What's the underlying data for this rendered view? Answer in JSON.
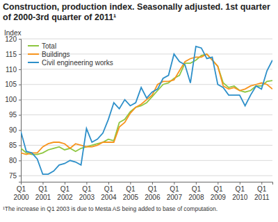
{
  "chart_data": {
    "type": "line",
    "title": "Construction, production index. Seasonally adjusted. 1st quarter of 2000-3rd quarter of 2011¹",
    "y_label": "Index",
    "annotations": [
      "¹The increase in Q1 2003 is due to Mesta AS being added to base of computation."
    ],
    "categories": [
      "Q1 2000",
      null,
      null,
      null,
      "Q1 2001",
      null,
      null,
      null,
      "Q1 2002",
      null,
      null,
      null,
      "Q1 2003",
      null,
      null,
      null,
      "Q1 2004",
      null,
      null,
      null,
      "Q1 2005",
      null,
      null,
      null,
      "Q1 2006",
      null,
      null,
      null,
      "Q1 2007",
      null,
      null,
      null,
      "Q1 2008",
      null,
      null,
      null,
      "Q1 2009",
      null,
      null,
      null,
      "Q1 2010",
      null,
      null,
      null,
      "Q1 2011",
      null,
      null
    ],
    "series": [
      {
        "name": "Total",
        "color": "#8dc63f",
        "values": [
          84,
          82.5,
          82,
          82,
          82.5,
          83.5,
          84,
          84.5,
          83.5,
          84,
          83,
          84,
          84.5,
          85,
          85.5,
          86,
          87,
          86.5,
          92.5,
          93.5,
          96,
          97.5,
          98,
          99,
          101,
          103,
          105,
          105.5,
          107,
          108,
          112,
          112,
          113,
          114.5,
          115,
          113,
          111,
          105.5,
          104,
          104.5,
          103,
          102.5,
          103,
          104.5,
          104.5,
          106,
          106.3
        ]
      },
      {
        "name": "Buildings",
        "color": "#f7941d",
        "values": [
          82.5,
          82,
          82.5,
          82.5,
          84.5,
          85.5,
          86,
          86,
          85.5,
          84,
          85.5,
          85,
          84.5,
          84.5,
          85,
          86,
          86,
          86,
          91,
          92.5,
          95.5,
          97.5,
          98.5,
          100,
          101.5,
          105,
          106,
          106,
          106.5,
          109.5,
          112.5,
          113.5,
          114,
          114,
          115,
          113,
          111,
          104.5,
          103.5,
          104,
          103,
          103.5,
          104.5,
          105,
          105.5,
          105,
          103.5
        ]
      },
      {
        "name": "Civil engineering works",
        "color": "#2d8fc9",
        "values": [
          89.5,
          83,
          82.5,
          80.5,
          75.5,
          75.5,
          76.5,
          78.5,
          79,
          80,
          79.5,
          78.5,
          90.5,
          86,
          87,
          89,
          93.5,
          99,
          97,
          100,
          98,
          99,
          104,
          100.5,
          102.5,
          103.5,
          107,
          108,
          115,
          112.5,
          111.5,
          105.5,
          117.5,
          117,
          113.5,
          114,
          105,
          104,
          101.5,
          101.5,
          101.5,
          98,
          101.5,
          104.5,
          103.5,
          109.5,
          113
        ]
      }
    ],
    "ylim": [
      73,
      120
    ],
    "yticks": [
      75,
      80,
      85,
      90,
      95,
      100,
      105,
      110,
      115,
      120
    ],
    "grid": true,
    "legend": "top-left"
  }
}
